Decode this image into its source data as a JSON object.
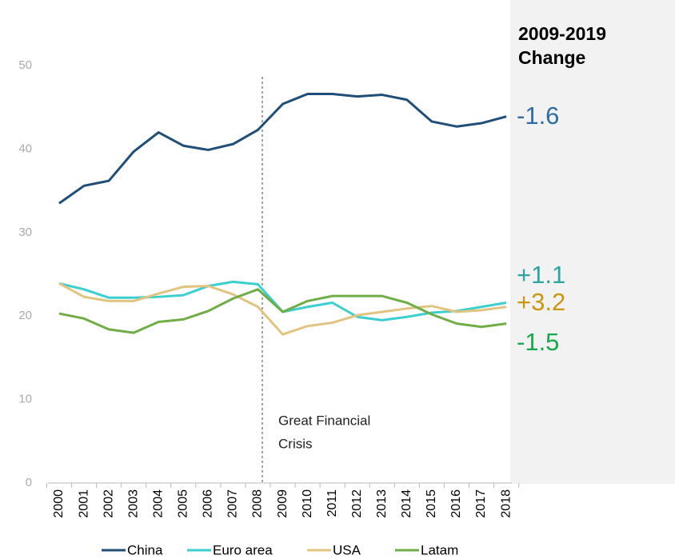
{
  "chart_data": {
    "type": "line",
    "categories": [
      "2000",
      "2001",
      "2002",
      "2003",
      "2004",
      "2005",
      "2006",
      "2007",
      "2008",
      "2009",
      "2010",
      "2011",
      "2012",
      "2013",
      "2014",
      "2015",
      "2016",
      "2017",
      "2018"
    ],
    "series": [
      {
        "name": "China",
        "color": "#1f4e79",
        "values": [
          33.5,
          35.6,
          36.2,
          39.7,
          42.0,
          40.4,
          39.9,
          40.6,
          42.3,
          45.4,
          46.6,
          46.6,
          46.3,
          46.5,
          45.9,
          43.3,
          42.7,
          43.1,
          43.9
        ]
      },
      {
        "name": "Euro area",
        "color": "#3ccfcf",
        "values": [
          23.9,
          23.2,
          22.2,
          22.2,
          22.3,
          22.5,
          23.6,
          24.1,
          23.8,
          20.5,
          21.1,
          21.6,
          19.9,
          19.5,
          19.9,
          20.4,
          20.6,
          21.1,
          21.6
        ]
      },
      {
        "name": "USA",
        "color": "#e2c480",
        "values": [
          23.9,
          22.3,
          21.8,
          21.8,
          22.7,
          23.5,
          23.6,
          22.6,
          21.1,
          17.8,
          18.8,
          19.2,
          20.1,
          20.5,
          20.9,
          21.2,
          20.5,
          20.7,
          21.1
        ]
      },
      {
        "name": "Latam",
        "color": "#70ad47",
        "values": [
          20.3,
          19.7,
          18.4,
          18.0,
          19.3,
          19.6,
          20.6,
          22.1,
          23.2,
          20.5,
          21.8,
          22.4,
          22.4,
          22.4,
          21.6,
          20.2,
          19.1,
          18.7,
          19.1
        ]
      }
    ],
    "ylim": [
      0,
      50
    ],
    "yticks": [
      0,
      10,
      20,
      30,
      40,
      50
    ],
    "annotation": [
      "Great Financial",
      "Crisis"
    ],
    "panel": {
      "title": [
        "2009-2019",
        "Change"
      ],
      "changes": [
        {
          "label": "-1.6",
          "color": "#2e6ca4"
        },
        {
          "label": "+1.1",
          "color": "#2aa5a0"
        },
        {
          "label": "+3.2",
          "color": "#c9960c"
        },
        {
          "label": "-1.5",
          "color": "#16a84a"
        }
      ]
    }
  }
}
